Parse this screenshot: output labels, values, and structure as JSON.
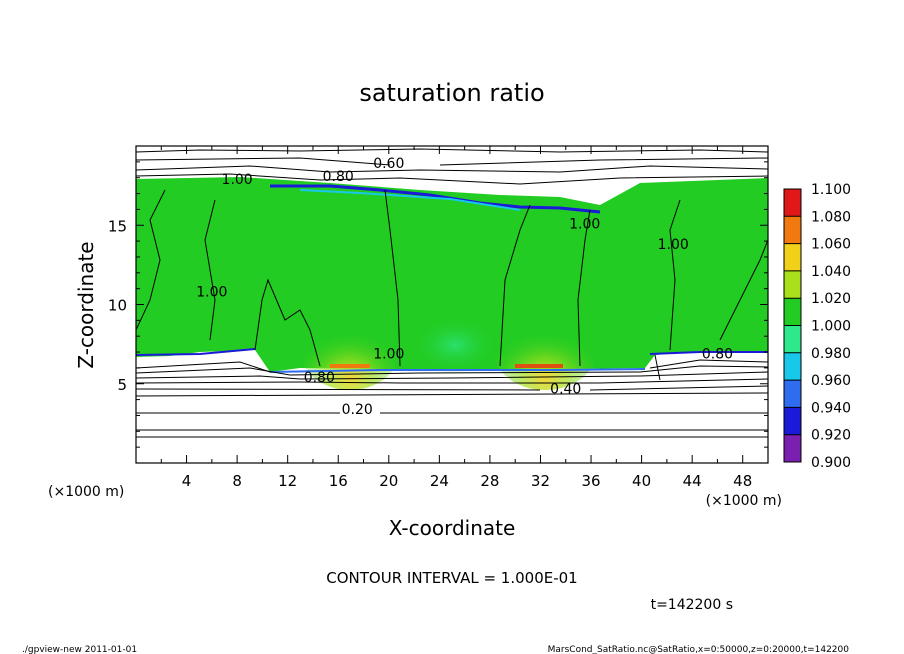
{
  "chart_data": {
    "type": "heatmap",
    "title": "saturation ratio",
    "xlabel": "X-coordinate",
    "ylabel": "Z-coordinate",
    "x_unit": "(×1000 m)",
    "x_unit_right": "(×1000 m)",
    "xlim": [
      0,
      50
    ],
    "ylim": [
      0,
      20
    ],
    "x_ticks": [
      4,
      8,
      12,
      16,
      20,
      24,
      28,
      32,
      36,
      40,
      44,
      48
    ],
    "y_ticks": [
      5,
      10,
      15
    ],
    "contour_interval_text": "CONTOUR INTERVAL = 1.000E-01",
    "time_text": "t=142200 s",
    "colorbar": {
      "levels": [
        0.9,
        0.92,
        0.94,
        0.96,
        0.98,
        1.0,
        1.02,
        1.04,
        1.06,
        1.08,
        1.1
      ],
      "labels": [
        "0.900",
        "0.920",
        "0.940",
        "0.960",
        "0.980",
        "1.000",
        "1.020",
        "1.040",
        "1.060",
        "1.080",
        "1.100"
      ],
      "colors": [
        "#7a1fb0",
        "#1a1ad8",
        "#2f6df0",
        "#18c8e8",
        "#2ee88c",
        "#22cc22",
        "#a8e01c",
        "#f0d018",
        "#f07a10",
        "#e01818",
        "#ff9a9a"
      ]
    },
    "contour_labels": [
      {
        "text": "0.60",
        "x": 20,
        "z": 18.6
      },
      {
        "text": "0.80",
        "x": 16,
        "z": 17.8
      },
      {
        "text": "1.00",
        "x": 8,
        "z": 17.6
      },
      {
        "text": "1.00",
        "x": 35.5,
        "z": 14.8
      },
      {
        "text": "1.00",
        "x": 42.5,
        "z": 13.5
      },
      {
        "text": "1.00",
        "x": 6,
        "z": 10.5
      },
      {
        "text": "1.00",
        "x": 20,
        "z": 6.6
      },
      {
        "text": "0.80",
        "x": 14.5,
        "z": 5.1
      },
      {
        "text": "0.40",
        "x": 34,
        "z": 4.4
      },
      {
        "text": "0.20",
        "x": 17.5,
        "z": 3.1
      },
      {
        "text": "0.80",
        "x": 46,
        "z": 6.6
      }
    ],
    "regions": {
      "saturated_layer_z": [
        6.2,
        18.0
      ],
      "background_value": 1.0
    }
  },
  "footer": {
    "left": "./gpview-new  2011-01-01",
    "right": "MarsCond_SatRatio.nc@SatRatio,x=0:50000,z=0:20000,t=142200"
  }
}
